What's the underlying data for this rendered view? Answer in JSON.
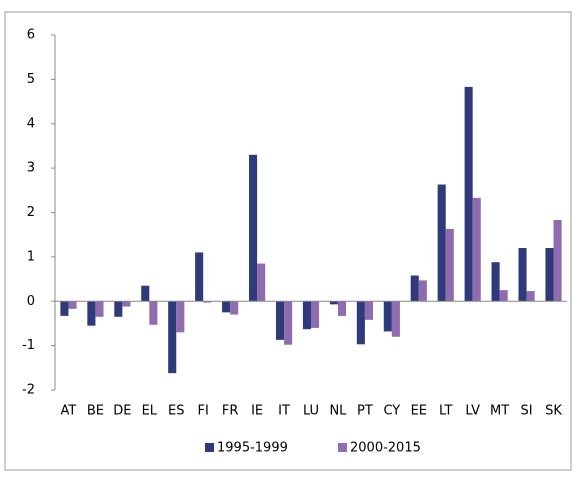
{
  "chart_data": {
    "type": "bar",
    "categories": [
      "AT",
      "BE",
      "DE",
      "EL",
      "ES",
      "FI",
      "FR",
      "IE",
      "IT",
      "LU",
      "NL",
      "PT",
      "CY",
      "EE",
      "LT",
      "LV",
      "MT",
      "SI",
      "SK"
    ],
    "series": [
      {
        "name": "1995-1999",
        "color": "#2e3a7a",
        "values": [
          -0.33,
          -0.55,
          -0.35,
          0.35,
          -1.62,
          1.1,
          -0.25,
          3.3,
          -0.87,
          -0.63,
          -0.07,
          -0.97,
          -0.68,
          0.58,
          2.63,
          4.83,
          0.88,
          1.2,
          1.2
        ]
      },
      {
        "name": "2000-2015",
        "color": "#8f6bb0",
        "values": [
          -0.17,
          -0.35,
          -0.12,
          -0.53,
          -0.7,
          -0.03,
          -0.3,
          0.85,
          -0.98,
          -0.6,
          -0.33,
          -0.42,
          -0.8,
          0.47,
          1.63,
          2.33,
          0.25,
          0.23,
          1.83
        ]
      }
    ],
    "ylim": [
      -2,
      6
    ],
    "yticks": [
      -2,
      -1,
      0,
      1,
      2,
      3,
      4,
      5,
      6
    ],
    "grid": false,
    "legend": "bottom"
  }
}
